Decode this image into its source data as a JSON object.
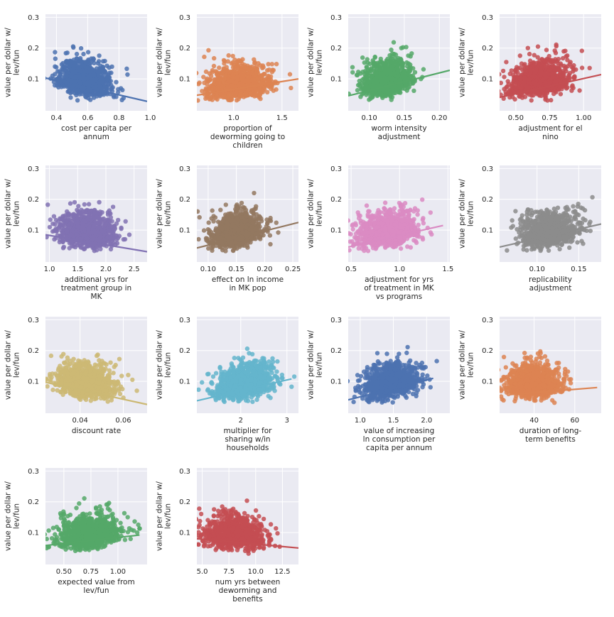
{
  "chart_data": [
    {
      "type": "scatter",
      "ylabel": "value per dollar w/\nlev/fun",
      "xlabel": "cost per capita per\nannum",
      "color": "#4c72b0",
      "xlim": [
        0.33,
        0.98
      ],
      "ylim": [
        0.015,
        0.31
      ],
      "xticks": [
        0.4,
        0.6,
        0.8,
        1.0
      ],
      "xticklabels": [
        "0.4",
        "0.6",
        "0.8",
        "1.0"
      ],
      "yticks": [
        0.1,
        0.2,
        0.3
      ],
      "yticklabels": [
        "0.1",
        "0.2",
        "0.3"
      ],
      "cloud": {
        "center": [
          0.58,
          0.09
        ],
        "spread": [
          0.09,
          0.035
        ]
      },
      "trend": [
        [
          0.33,
          0.103
        ],
        [
          0.98,
          0.027
        ]
      ]
    },
    {
      "type": "scatter",
      "ylabel": "value per dollar w/\nlev/fun",
      "xlabel": "proportion of\ndeworming going to\nchildren",
      "color": "#dd8452",
      "xlim": [
        0.62,
        1.67
      ],
      "ylim": [
        0.015,
        0.31
      ],
      "xticks": [
        1.0,
        1.5
      ],
      "xticklabels": [
        "1.0",
        "1.5"
      ],
      "yticks": [
        0.1,
        0.2,
        0.3
      ],
      "yticklabels": [
        "0.1",
        "0.2",
        "0.3"
      ],
      "cloud": {
        "center": [
          1.05,
          0.08
        ],
        "spread": [
          0.18,
          0.035
        ]
      },
      "trend": [
        [
          0.62,
          0.047
        ],
        [
          1.67,
          0.1
        ]
      ]
    },
    {
      "type": "scatter",
      "ylabel": "value per dollar w/\nlev/fun",
      "xlabel": "worm intensity\nadjustment",
      "color": "#55a868",
      "xlim": [
        0.07,
        0.215
      ],
      "ylim": [
        0.015,
        0.31
      ],
      "xticks": [
        0.1,
        0.15,
        0.2
      ],
      "xticklabels": [
        "0.10",
        "0.15",
        "0.20"
      ],
      "yticks": [
        0.1,
        0.2,
        0.3
      ],
      "yticklabels": [
        "0.1",
        "0.2",
        "0.3"
      ],
      "cloud": {
        "center": [
          0.125,
          0.09
        ],
        "spread": [
          0.02,
          0.035
        ]
      },
      "trend": [
        [
          0.07,
          0.045
        ],
        [
          0.215,
          0.128
        ]
      ]
    },
    {
      "type": "scatter",
      "ylabel": "value per dollar w/\nlev/fun",
      "xlabel": "adjustment for el\nnino",
      "color": "#c44e52",
      "xlim": [
        0.38,
        1.13
      ],
      "ylim": [
        0.015,
        0.31
      ],
      "xticks": [
        0.5,
        0.75,
        1.0
      ],
      "xticklabels": [
        "0.50",
        "0.75",
        "1.00"
      ],
      "yticks": [
        0.1,
        0.2,
        0.3
      ],
      "yticklabels": [
        "0.1",
        "0.2",
        "0.3"
      ],
      "cloud": {
        "center": [
          0.68,
          0.09
        ],
        "spread": [
          0.12,
          0.035
        ]
      },
      "trend": [
        [
          0.38,
          0.04
        ],
        [
          1.13,
          0.114
        ]
      ]
    },
    {
      "type": "scatter",
      "ylabel": "value per dollar w/\nlev/fun",
      "xlabel": "additional yrs for\ntreatment group in\nMK",
      "color": "#8172b3",
      "xlim": [
        0.93,
        2.73
      ],
      "ylim": [
        0.015,
        0.31
      ],
      "xticks": [
        1.0,
        1.5,
        2.0,
        2.5
      ],
      "xticklabels": [
        "1.0",
        "1.5",
        "2.0",
        "2.5"
      ],
      "yticks": [
        0.1,
        0.2,
        0.3
      ],
      "yticklabels": [
        "0.1",
        "0.2",
        "0.3"
      ],
      "cloud": {
        "center": [
          1.65,
          0.09
        ],
        "spread": [
          0.28,
          0.035
        ]
      },
      "trend": [
        [
          0.93,
          0.085
        ],
        [
          2.73,
          0.03
        ]
      ]
    },
    {
      "type": "scatter",
      "ylabel": "value per dollar w/\nlev/fun",
      "xlabel": "effect on ln income\nin MK pop",
      "color": "#937860",
      "xlim": [
        0.08,
        0.26
      ],
      "ylim": [
        0.015,
        0.31
      ],
      "xticks": [
        0.1,
        0.15,
        0.2,
        0.25
      ],
      "xticklabels": [
        "0.10",
        "0.15",
        "0.20",
        "0.25"
      ],
      "yticks": [
        0.1,
        0.2,
        0.3
      ],
      "yticklabels": [
        "0.1",
        "0.2",
        "0.3"
      ],
      "cloud": {
        "center": [
          0.15,
          0.09
        ],
        "spread": [
          0.025,
          0.035
        ]
      },
      "trend": [
        [
          0.08,
          0.042
        ],
        [
          0.26,
          0.125
        ]
      ]
    },
    {
      "type": "scatter",
      "ylabel": "value per dollar w/\nlev/fun",
      "xlabel": "adjustment for yrs\nof treatment in MK\nvs programs",
      "color": "#da8bc3",
      "xlim": [
        0.47,
        1.52
      ],
      "ylim": [
        0.015,
        0.31
      ],
      "xticks": [
        0.5,
        1.0,
        1.5
      ],
      "xticklabels": [
        "0.5",
        "1.0",
        "1.5"
      ],
      "yticks": [
        0.1,
        0.2,
        0.3
      ],
      "yticklabels": [
        "0.1",
        "0.2",
        "0.3"
      ],
      "cloud": {
        "center": [
          0.88,
          0.09
        ],
        "spread": [
          0.17,
          0.035
        ]
      },
      "trend": [
        [
          0.47,
          0.045
        ],
        [
          1.45,
          0.115
        ]
      ]
    },
    {
      "type": "scatter",
      "ylabel": "value per dollar w/\nlev/fun",
      "xlabel": "replicability\nadjustment",
      "color": "#8c8c8c",
      "xlim": [
        0.055,
        0.177
      ],
      "ylim": [
        0.015,
        0.31
      ],
      "xticks": [
        0.1,
        0.15
      ],
      "xticklabels": [
        "0.10",
        "0.15"
      ],
      "yticks": [
        0.1,
        0.2,
        0.3
      ],
      "yticklabels": [
        "0.1",
        "0.2",
        "0.3"
      ],
      "cloud": {
        "center": [
          0.115,
          0.09
        ],
        "spread": [
          0.018,
          0.035
        ]
      },
      "trend": [
        [
          0.055,
          0.045
        ],
        [
          0.177,
          0.12
        ]
      ]
    },
    {
      "type": "scatter",
      "ylabel": "value per dollar w/\nlev/fun",
      "xlabel": "discount rate",
      "color": "#ccb974",
      "xlim": [
        0.024,
        0.071
      ],
      "ylim": [
        0.015,
        0.31
      ],
      "xticks": [
        0.04,
        0.06
      ],
      "xticklabels": [
        "0.04",
        "0.06"
      ],
      "yticks": [
        0.1,
        0.2,
        0.3
      ],
      "yticklabels": [
        "0.1",
        "0.2",
        "0.3"
      ],
      "cloud": {
        "center": [
          0.042,
          0.09
        ],
        "spread": [
          0.007,
          0.035
        ]
      },
      "trend": [
        [
          0.024,
          0.097
        ],
        [
          0.071,
          0.025
        ]
      ]
    },
    {
      "type": "scatter",
      "ylabel": "value per dollar w/\nlev/fun",
      "xlabel": "multiplier for\nsharing w/in\nhouseholds",
      "color": "#64b5cd",
      "xlim": [
        1.05,
        3.25
      ],
      "ylim": [
        0.015,
        0.31
      ],
      "xticks": [
        2,
        3
      ],
      "xticklabels": [
        "2",
        "3"
      ],
      "yticks": [
        0.1,
        0.2,
        0.3
      ],
      "yticklabels": [
        "0.1",
        "0.2",
        "0.3"
      ],
      "cloud": {
        "center": [
          2.1,
          0.09
        ],
        "spread": [
          0.35,
          0.035
        ]
      },
      "trend": [
        [
          1.05,
          0.037
        ],
        [
          3.1,
          0.108
        ]
      ]
    },
    {
      "type": "scatter",
      "ylabel": "value per dollar w/\nlev/fun",
      "xlabel": "value of increasing\nln consumption per\ncapita per annum",
      "color": "#4c72b0",
      "xlim": [
        0.82,
        2.35
      ],
      "ylim": [
        0.015,
        0.31
      ],
      "xticks": [
        1.0,
        1.5,
        2.0
      ],
      "xticklabels": [
        "1.0",
        "1.5",
        "2.0"
      ],
      "yticks": [
        0.1,
        0.2,
        0.3
      ],
      "yticklabels": [
        "0.1",
        "0.2",
        "0.3"
      ],
      "cloud": {
        "center": [
          1.45,
          0.09
        ],
        "spread": [
          0.22,
          0.035
        ]
      },
      "trend": [
        [
          0.82,
          0.04
        ],
        [
          2.1,
          0.11
        ]
      ]
    },
    {
      "type": "scatter",
      "ylabel": "value per dollar w/\nlev/fun",
      "xlabel": "duration of long-\nterm benefits",
      "color": "#dd8452",
      "xlim": [
        23,
        73
      ],
      "ylim": [
        0.015,
        0.31
      ],
      "xticks": [
        40,
        60
      ],
      "xticklabels": [
        "40",
        "60"
      ],
      "yticks": [
        0.1,
        0.2,
        0.3
      ],
      "yticklabels": [
        "0.1",
        "0.2",
        "0.3"
      ],
      "cloud": {
        "center": [
          40,
          0.09
        ],
        "spread": [
          7,
          0.035
        ]
      },
      "trend": [
        [
          28,
          0.057
        ],
        [
          71,
          0.08
        ]
      ]
    },
    {
      "type": "scatter",
      "ylabel": "value per dollar w/\nlev/fun",
      "xlabel": "expected value from\nlev/fun",
      "color": "#55a868",
      "xlim": [
        0.33,
        1.27
      ],
      "ylim": [
        0.015,
        0.31
      ],
      "xticks": [
        0.5,
        0.75,
        1.0
      ],
      "xticklabels": [
        "0.50",
        "0.75",
        "1.00"
      ],
      "yticks": [
        0.1,
        0.2,
        0.3
      ],
      "yticklabels": [
        "0.1",
        "0.2",
        "0.3"
      ],
      "cloud": {
        "center": [
          0.74,
          0.09
        ],
        "spread": [
          0.15,
          0.035
        ]
      },
      "trend": [
        [
          0.33,
          0.058
        ],
        [
          1.2,
          0.092
        ]
      ]
    },
    {
      "type": "scatter",
      "ylabel": "value per dollar w/\nlev/fun",
      "xlabel": "num yrs between\ndeworming and\nbenefits",
      "color": "#c44e52",
      "xlim": [
        4.5,
        14.0
      ],
      "ylim": [
        0.015,
        0.31
      ],
      "xticks": [
        5.0,
        7.5,
        10.0,
        12.5
      ],
      "xticklabels": [
        "5.0",
        "7.5",
        "10.0",
        "12.5"
      ],
      "yticks": [
        0.1,
        0.2,
        0.3
      ],
      "yticklabels": [
        "0.1",
        "0.2",
        "0.3"
      ],
      "cloud": {
        "center": [
          8.0,
          0.09
        ],
        "spread": [
          1.5,
          0.035
        ]
      },
      "trend": [
        [
          4.5,
          0.08
        ],
        [
          14.0,
          0.05
        ]
      ]
    }
  ]
}
